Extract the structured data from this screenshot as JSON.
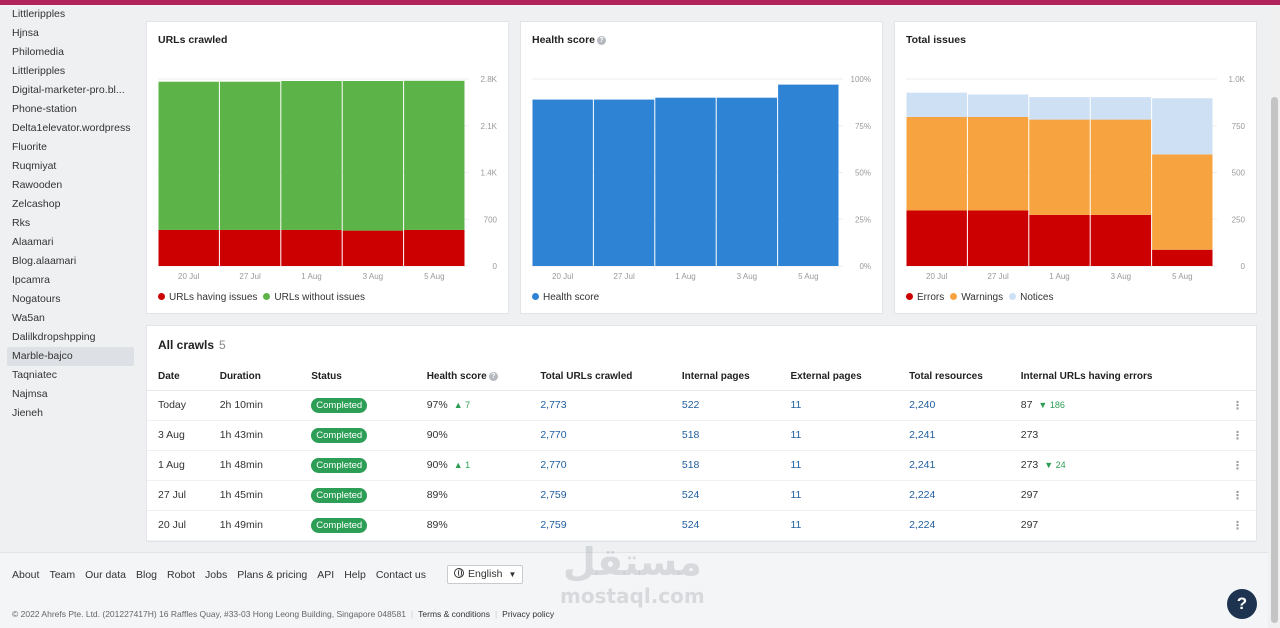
{
  "sidebar": {
    "items": [
      "Littleripples",
      "Hjnsa",
      "Philomedia",
      "Littleripples",
      "Digital-marketer-pro.bl...",
      "Phone-station",
      "Delta1elevator.wordpress",
      "Fluorite",
      "Ruqmiyat",
      "Rawooden",
      "Zelcashop",
      "Rks",
      "Alaamari",
      "Blog.alaamari",
      "Ipcamra",
      "Nogatours",
      "Wa5an",
      "Dalilkdropshpping",
      "Marble-bajco",
      "Taqniatec",
      "Najmsa",
      "Jieneh"
    ],
    "active_index": 18
  },
  "charts": {
    "urls": {
      "title": "URLs crawled",
      "x_ticks": [
        "20 Jul",
        "27 Jul",
        "1 Aug",
        "3 Aug",
        "5 Aug"
      ],
      "y_ticks": [
        "2.8K",
        "2.1K",
        "1.4K",
        "700",
        "0"
      ],
      "legend": [
        "URLs having issues",
        "URLs without issues"
      ]
    },
    "health": {
      "title": "Health score",
      "x_ticks": [
        "20 Jul",
        "27 Jul",
        "1 Aug",
        "3 Aug",
        "5 Aug"
      ],
      "y_ticks": [
        "100%",
        "75%",
        "50%",
        "25%",
        "0%"
      ],
      "legend": [
        "Health score"
      ]
    },
    "issues": {
      "title": "Total issues",
      "x_ticks": [
        "20 Jul",
        "27 Jul",
        "1 Aug",
        "3 Aug",
        "5 Aug"
      ],
      "y_ticks": [
        "1.0K",
        "750",
        "500",
        "250",
        "0"
      ],
      "legend": [
        "Errors",
        "Warnings",
        "Notices"
      ]
    }
  },
  "chart_data": [
    {
      "type": "bar",
      "title": "URLs crawled",
      "categories": [
        "20 Jul",
        "27 Jul",
        "1 Aug",
        "3 Aug",
        "5 Aug"
      ],
      "stacked": true,
      "ylim": [
        0,
        2800
      ],
      "series": [
        {
          "name": "URLs having issues",
          "values": [
            540,
            540,
            540,
            530,
            540
          ],
          "color": "#cc0000"
        },
        {
          "name": "URLs without issues",
          "values": [
            2219,
            2219,
            2230,
            2240,
            2233
          ],
          "color": "#5cb347"
        }
      ]
    },
    {
      "type": "bar",
      "title": "Health score",
      "categories": [
        "20 Jul",
        "27 Jul",
        "1 Aug",
        "3 Aug",
        "5 Aug"
      ],
      "ylim": [
        0,
        100
      ],
      "series": [
        {
          "name": "Health score",
          "values": [
            89,
            89,
            90,
            90,
            97
          ],
          "color": "#2f83d4"
        }
      ]
    },
    {
      "type": "bar",
      "title": "Total issues",
      "categories": [
        "20 Jul",
        "27 Jul",
        "1 Aug",
        "3 Aug",
        "5 Aug"
      ],
      "stacked": true,
      "ylim": [
        0,
        1000
      ],
      "series": [
        {
          "name": "Errors",
          "values": [
            297,
            297,
            273,
            273,
            87
          ],
          "color": "#cc0000"
        },
        {
          "name": "Warnings",
          "values": [
            500,
            500,
            510,
            510,
            510
          ],
          "color": "#f7a440"
        },
        {
          "name": "Notices",
          "values": [
            130,
            120,
            120,
            120,
            300
          ],
          "color": "#cde0f4"
        }
      ]
    }
  ],
  "crawls": {
    "title": "All crawls",
    "count": "5",
    "columns": [
      "Date",
      "Duration",
      "Status",
      "Health score",
      "Total URLs crawled",
      "Internal pages",
      "External pages",
      "Total resources",
      "Internal URLs having errors"
    ],
    "rows": [
      {
        "date": "Today",
        "duration": "2h 10min",
        "status": "Completed",
        "health": "97%",
        "health_delta": "▲ 7",
        "urls": "2,773",
        "internal": "522",
        "external": "11",
        "resources": "2,240",
        "errors": "87",
        "errors_delta": "▼ 186"
      },
      {
        "date": "3 Aug",
        "duration": "1h 43min",
        "status": "Completed",
        "health": "90%",
        "health_delta": "",
        "urls": "2,770",
        "internal": "518",
        "external": "11",
        "resources": "2,241",
        "errors": "273",
        "errors_delta": ""
      },
      {
        "date": "1 Aug",
        "duration": "1h 48min",
        "status": "Completed",
        "health": "90%",
        "health_delta": "▲ 1",
        "urls": "2,770",
        "internal": "518",
        "external": "11",
        "resources": "2,241",
        "errors": "273",
        "errors_delta": "▼ 24"
      },
      {
        "date": "27 Jul",
        "duration": "1h 45min",
        "status": "Completed",
        "health": "89%",
        "health_delta": "",
        "urls": "2,759",
        "internal": "524",
        "external": "11",
        "resources": "2,224",
        "errors": "297",
        "errors_delta": ""
      },
      {
        "date": "20 Jul",
        "duration": "1h 49min",
        "status": "Completed",
        "health": "89%",
        "health_delta": "",
        "urls": "2,759",
        "internal": "524",
        "external": "11",
        "resources": "2,224",
        "errors": "297",
        "errors_delta": ""
      }
    ]
  },
  "footer": {
    "links": [
      "About",
      "Team",
      "Our data",
      "Blog",
      "Robot",
      "Jobs",
      "Plans & pricing",
      "API",
      "Help",
      "Contact us"
    ],
    "language": "English",
    "copyright": "© 2022 Ahrefs Pte. Ltd. (201227417H) 16 Raffles Quay, #33-03 Hong Leong Building, Singapore 048581",
    "terms": "Terms & conditions",
    "privacy": "Privacy policy"
  },
  "watermark": {
    "arabic": "مستقل",
    "latin": "mostaql.com"
  },
  "help_button": "?",
  "icons": {
    "help": "question-circle-icon",
    "globe": "globe-icon",
    "kebab": "kebab-menu-icon",
    "caret": "caret-down-icon"
  }
}
